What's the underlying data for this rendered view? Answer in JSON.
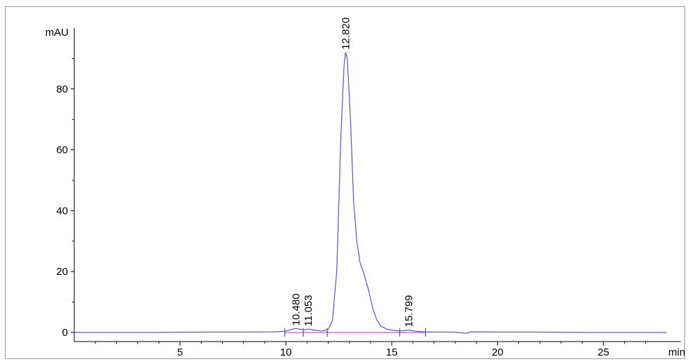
{
  "chart_data": {
    "type": "line",
    "title": "",
    "ylabel": "mAU",
    "xlabel": "min",
    "xlim": [
      0,
      28
    ],
    "ylim": [
      -3,
      100
    ],
    "x_ticks": [
      5,
      10,
      15,
      20,
      25
    ],
    "y_ticks": [
      0,
      20,
      40,
      60,
      80
    ],
    "x_tick_labels": [
      "5",
      "10",
      "15",
      "20",
      "25"
    ],
    "y_tick_labels": [
      "0",
      "20",
      "40",
      "60",
      "80"
    ],
    "grid": false,
    "colors": {
      "trace": "#5555dd",
      "baseline": "#dd22dd",
      "axis": "#000000"
    },
    "series": [
      {
        "x": [
          0.0,
          2.0,
          4.0,
          6.0,
          8.0,
          9.5,
          10.0,
          10.2,
          10.48,
          10.7,
          10.9,
          11.053,
          11.3,
          11.7,
          12.0,
          12.2,
          12.4,
          12.6,
          12.75,
          12.82,
          12.9,
          13.05,
          13.2,
          13.35,
          13.5,
          13.7,
          13.9,
          14.1,
          14.3,
          14.5,
          14.8,
          15.2,
          15.5,
          15.799,
          16.1,
          16.5,
          17.0,
          18.0,
          18.5,
          18.7,
          19.0,
          20.0,
          22.0,
          24.0,
          26.0,
          28.0
        ],
        "y": [
          0.0,
          0.0,
          0.0,
          0.1,
          0.1,
          0.2,
          0.4,
          0.9,
          1.3,
          1.0,
          0.9,
          1.1,
          0.8,
          0.4,
          1.0,
          4.0,
          20.0,
          65.0,
          88.0,
          92.0,
          90.0,
          70.0,
          43.0,
          30.0,
          23.0,
          19.0,
          14.0,
          8.0,
          4.0,
          2.0,
          1.0,
          0.6,
          0.5,
          0.8,
          0.4,
          0.2,
          0.1,
          0.1,
          -0.3,
          0.1,
          0.2,
          0.1,
          0.1,
          0.0,
          0.0,
          0.0
        ]
      }
    ],
    "peaks": [
      {
        "rt": 10.48,
        "label": "10.480",
        "height": 1.3
      },
      {
        "rt": 11.053,
        "label": "11.053",
        "height": 1.1
      },
      {
        "rt": 12.82,
        "label": "12.820",
        "height": 92.0
      },
      {
        "rt": 15.799,
        "label": "15.799",
        "height": 0.8
      }
    ],
    "integration_marks": [
      9.95,
      10.82,
      11.95,
      15.38,
      16.6
    ],
    "baseline": {
      "x": [
        9.95,
        16.6
      ],
      "y": [
        0.0,
        0.0
      ]
    }
  }
}
